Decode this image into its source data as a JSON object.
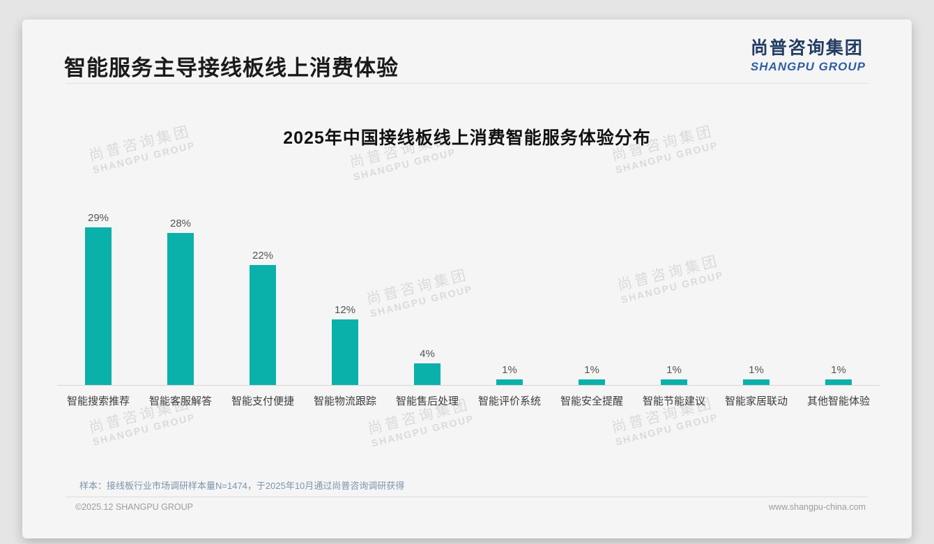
{
  "page": {
    "title": "智能服务主导接线板线上消费体验",
    "logo": {
      "cn": "尚普咨询集团",
      "en": "SHANGPU GROUP"
    },
    "watermark": {
      "line1": "尚普咨询集团",
      "line2": "SHANGPU GROUP"
    },
    "footnote": "样本：接线板行业市场调研样本量N=1474，于2025年10月通过尚普咨询调研获得",
    "footer_left": "©2025.12 SHANGPU GROUP",
    "footer_right": "www.shangpu-china.com"
  },
  "chart_data": {
    "type": "bar",
    "title": "2025年中国接线板线上消费智能服务体验分布",
    "categories": [
      "智能搜索推荐",
      "智能客服解答",
      "智能支付便捷",
      "智能物流跟踪",
      "智能售后处理",
      "智能评价系统",
      "智能安全提醒",
      "智能节能建议",
      "智能家居联动",
      "其他智能体验"
    ],
    "values": [
      29,
      28,
      22,
      12,
      4,
      1,
      1,
      1,
      1,
      1
    ],
    "value_labels": [
      "29%",
      "28%",
      "22%",
      "12%",
      "4%",
      "1%",
      "1%",
      "1%",
      "1%",
      "1%"
    ],
    "unit": "%",
    "bar_color": "#0ab1aa",
    "xlabel": "",
    "ylabel": "",
    "ylim": [
      0,
      31
    ],
    "grid": false,
    "legend": false
  }
}
